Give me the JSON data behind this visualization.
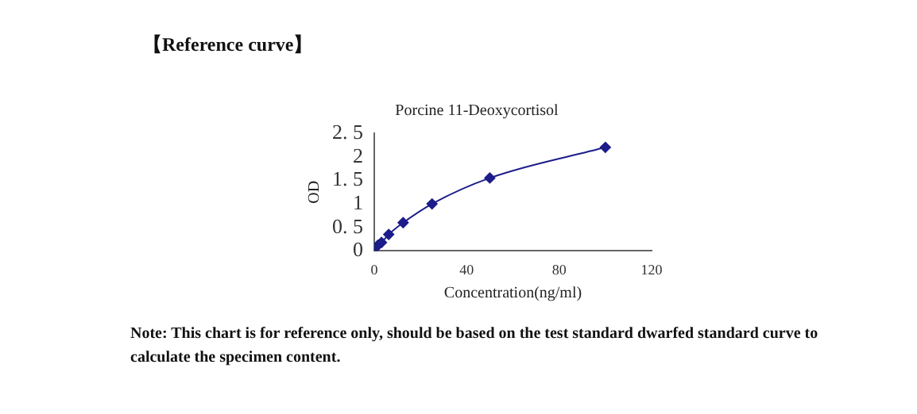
{
  "chart_data": {
    "type": "line",
    "title": "Porcine 11-Deoxycortisol",
    "xlabel": "Concentration(ng/ml)",
    "ylabel": "OD",
    "annotations": [
      "【Reference curve】",
      "Note: This chart is for reference only, should be based on the test standard dwarfed standard curve to calculate the specimen content."
    ],
    "x": [
      0,
      1.56,
      3.12,
      6.25,
      12.5,
      25,
      50,
      100
    ],
    "series": [
      {
        "color": "#1c1c8a",
        "values": [
          0.05,
          0.12,
          0.18,
          0.35,
          0.6,
          1.0,
          1.55,
          2.2
        ]
      }
    ],
    "xlim": [
      0,
      120
    ],
    "xticks": [
      0,
      40,
      80,
      120
    ],
    "ylim": [
      0,
      2.5
    ],
    "yticks": [
      0,
      {
        "value": 0.5,
        "label": "0. 5"
      },
      1,
      {
        "value": 1.5,
        "label": "1. 5"
      },
      2,
      {
        "value": 2.5,
        "label": "2. 5"
      }
    ],
    "grid": false,
    "legend": false,
    "marker": "diamond",
    "line_style": "solid"
  }
}
